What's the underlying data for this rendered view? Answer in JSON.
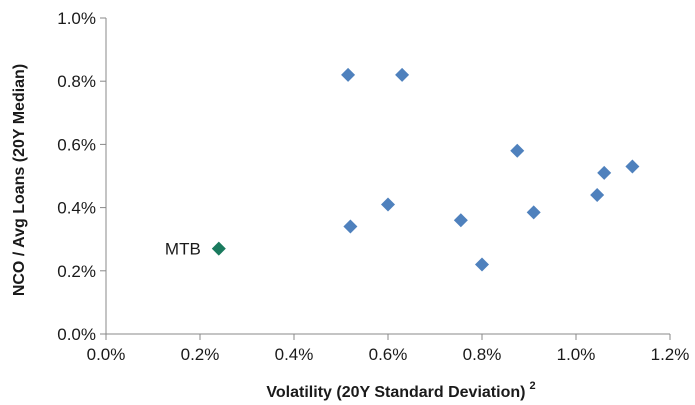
{
  "chart_data": {
    "type": "scatter",
    "title": "",
    "xlabel": "Volatility (20Y Standard Deviation)",
    "xlabel_superscript": "2",
    "ylabel": "NCO / Avg Loans (20Y Median)",
    "xlim": [
      0,
      1.2
    ],
    "ylim": [
      0,
      1.0
    ],
    "x_ticks": [
      "0.0%",
      "0.2%",
      "0.4%",
      "0.6%",
      "0.8%",
      "1.0%",
      "1.2%"
    ],
    "y_ticks": [
      "0.0%",
      "0.2%",
      "0.4%",
      "0.6%",
      "0.8%",
      "1.0%"
    ],
    "grid": false,
    "legend": "none",
    "series": [
      {
        "marker": "diamond",
        "color": "#4f81bd",
        "points": [
          {
            "x": 0.515,
            "y": 0.82
          },
          {
            "x": 0.63,
            "y": 0.82
          },
          {
            "x": 0.875,
            "y": 0.58
          },
          {
            "x": 1.06,
            "y": 0.51
          },
          {
            "x": 1.12,
            "y": 0.53
          },
          {
            "x": 1.045,
            "y": 0.44
          },
          {
            "x": 0.6,
            "y": 0.41
          },
          {
            "x": 0.91,
            "y": 0.385
          },
          {
            "x": 0.755,
            "y": 0.36
          },
          {
            "x": 0.52,
            "y": 0.34
          },
          {
            "x": 0.8,
            "y": 0.22
          }
        ]
      },
      {
        "marker": "diamond",
        "color": "#1a7a5e",
        "points": [
          {
            "x": 0.24,
            "y": 0.27,
            "label": "MTB"
          }
        ]
      }
    ]
  }
}
